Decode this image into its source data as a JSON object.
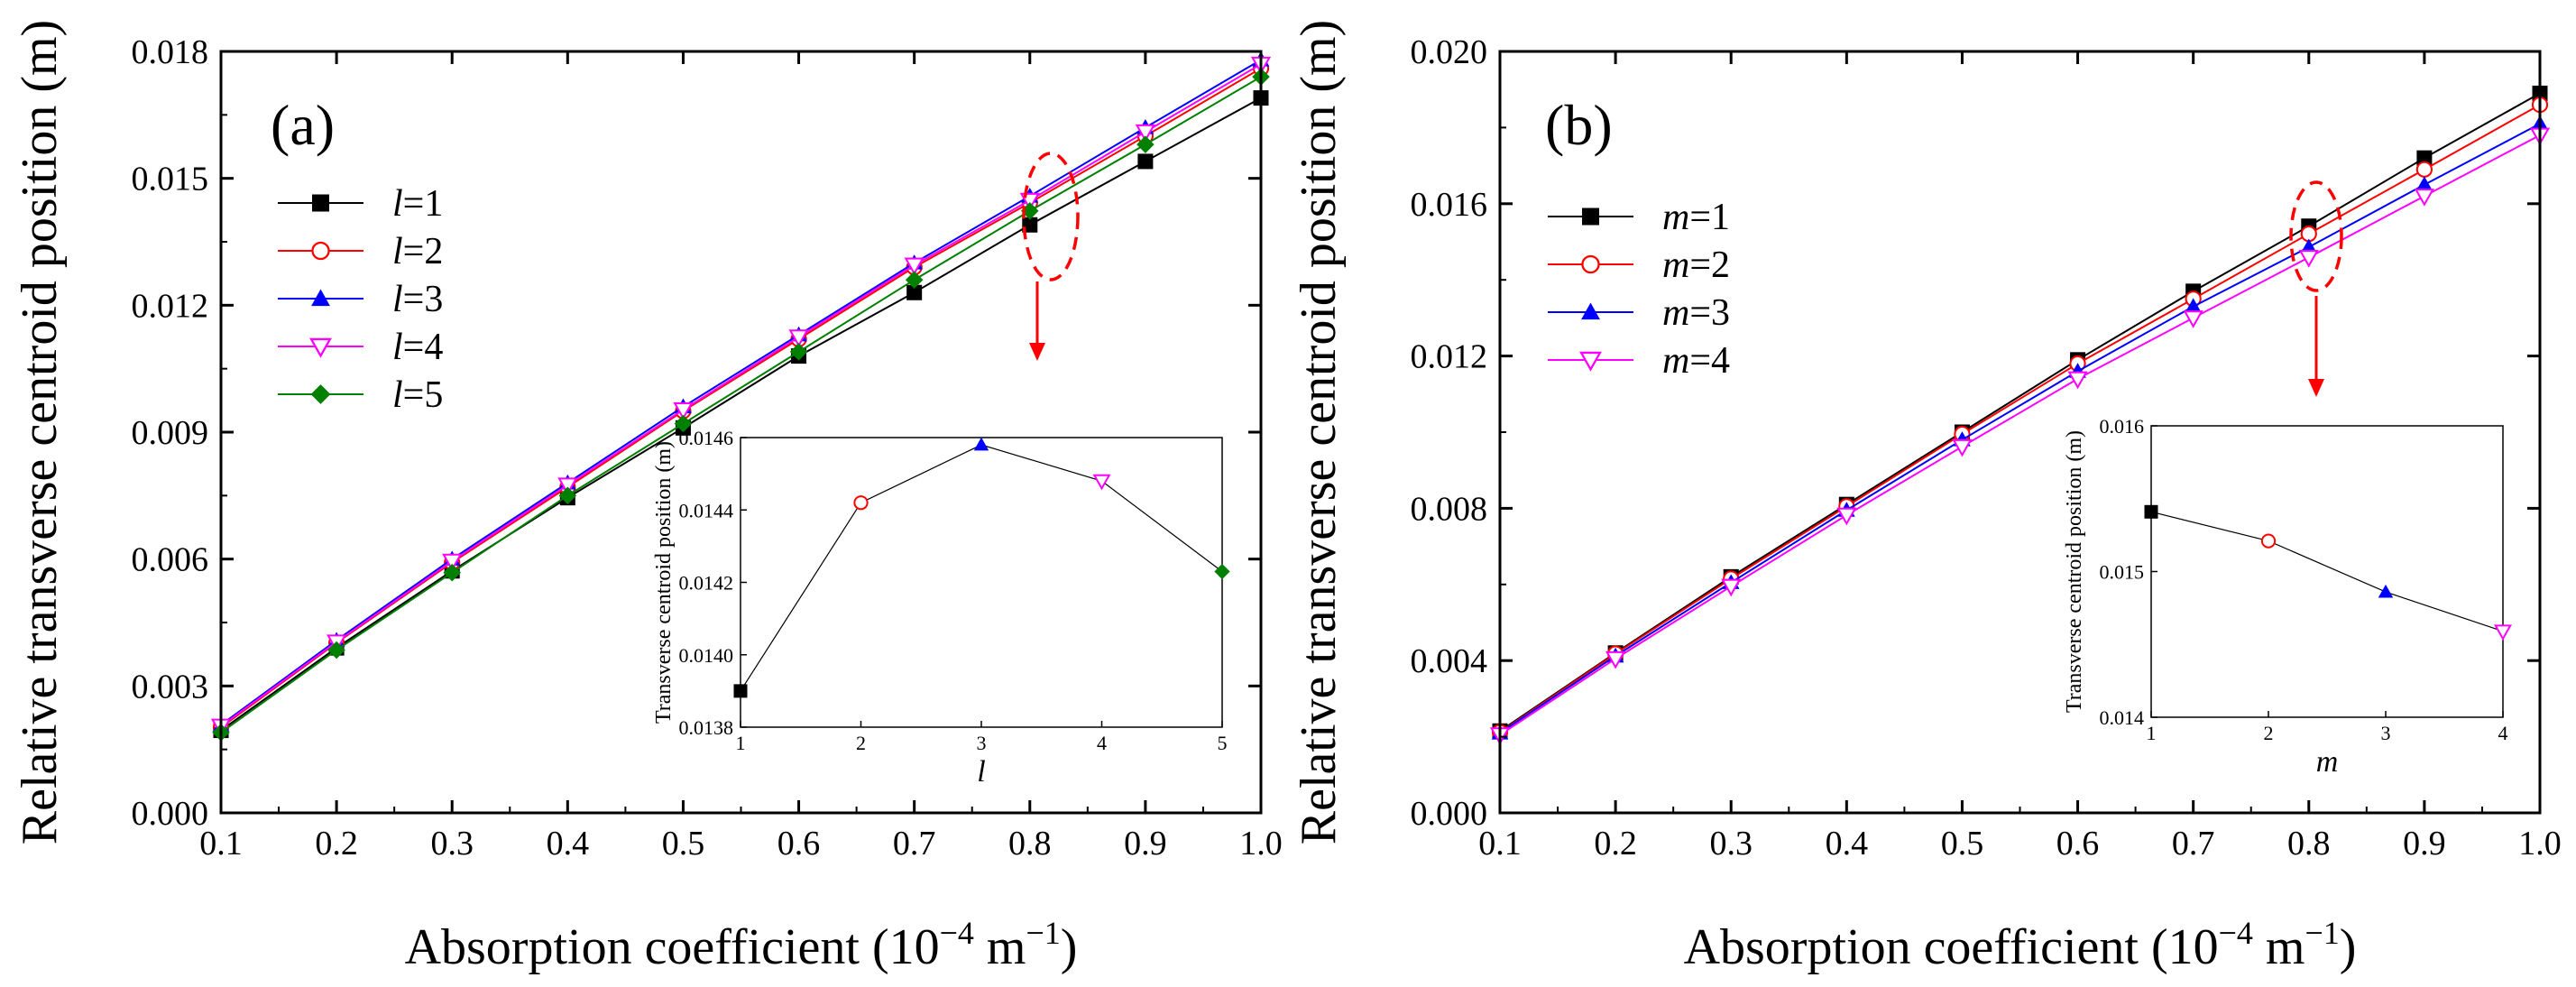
{
  "chart_data": [
    {
      "type": "line",
      "panel_label": "(a)",
      "xlabel": "Absorption coefficient (10^-4 m^-1)",
      "xlabel_base": "Absorption coefficient (10",
      "xlabel_exp1": "−4",
      "xlabel_unit": " m",
      "xlabel_exp2": "−1",
      "xlabel_close": ")",
      "ylabel": "Relative transverse centroid position (m)",
      "xlim": [
        0.1,
        1.0
      ],
      "ylim": [
        0.0,
        0.018
      ],
      "xticks": [
        "0.1",
        "0.2",
        "0.3",
        "0.4",
        "0.5",
        "0.6",
        "0.7",
        "0.8",
        "0.9",
        "1.0"
      ],
      "yticks": [
        "0.000",
        "0.003",
        "0.006",
        "0.009",
        "0.012",
        "0.015",
        "0.018"
      ],
      "x": [
        0.1,
        0.2,
        0.3,
        0.4,
        0.5,
        0.6,
        0.7,
        0.8,
        0.9,
        1.0
      ],
      "series": [
        {
          "name": "l=1",
          "var": "l",
          "eq": "=1",
          "color": "#000000",
          "marker": "square",
          "values": [
            0.00195,
            0.0039,
            0.00572,
            0.00745,
            0.0091,
            0.0108,
            0.0123,
            0.0139,
            0.0154,
            0.0169
          ]
        },
        {
          "name": "l=2",
          "var": "l",
          "eq": "=2",
          "color": "#ff0000",
          "marker": "circle-open",
          "values": [
            0.00202,
            0.00402,
            0.00592,
            0.0077,
            0.0095,
            0.0112,
            0.0129,
            0.01442,
            0.016,
            0.0176
          ]
        },
        {
          "name": "l=3",
          "var": "l",
          "eq": "=3",
          "color": "#0000ff",
          "marker": "triangle-up",
          "values": [
            0.00208,
            0.00408,
            0.006,
            0.0078,
            0.0096,
            0.0113,
            0.013,
            0.01458,
            0.0162,
            0.0178
          ]
        },
        {
          "name": "l=4",
          "var": "l",
          "eq": "=4",
          "color": "#ff00ff",
          "marker": "triangle-down-open",
          "values": [
            0.00205,
            0.00404,
            0.00595,
            0.00775,
            0.00953,
            0.01125,
            0.01295,
            0.01448,
            0.0161,
            0.0177
          ]
        },
        {
          "name": "l=5",
          "var": "l",
          "eq": "=5",
          "color": "#008000",
          "marker": "diamond",
          "values": [
            0.0019,
            0.00385,
            0.00568,
            0.0075,
            0.0092,
            0.0109,
            0.0126,
            0.01423,
            0.0158,
            0.0174
          ]
        }
      ],
      "inset": {
        "xlabel": "l",
        "ylabel": "Transverse centroid position (m)",
        "xlim": [
          1,
          5
        ],
        "ylim": [
          0.0138,
          0.0146
        ],
        "xticks": [
          "1",
          "2",
          "3",
          "4",
          "5"
        ],
        "yticks": [
          "0.0138",
          "0.0140",
          "0.0142",
          "0.0144",
          "0.0146"
        ],
        "x": [
          1,
          2,
          3,
          4,
          5
        ],
        "values": [
          0.0139,
          0.01442,
          0.01458,
          0.01448,
          0.01423
        ]
      }
    },
    {
      "type": "line",
      "panel_label": "(b)",
      "xlabel": "Absorption coefficient (10^-4 m^-1)",
      "xlabel_base": "Absorption coefficient (10",
      "xlabel_exp1": "−4",
      "xlabel_unit": " m",
      "xlabel_exp2": "−1",
      "xlabel_close": ")",
      "ylabel": "Relative transverse centroid position (m)",
      "xlim": [
        0.1,
        1.0
      ],
      "ylim": [
        0.0,
        0.02
      ],
      "xticks": [
        "0.1",
        "0.2",
        "0.3",
        "0.4",
        "0.5",
        "0.6",
        "0.7",
        "0.8",
        "0.9",
        "1.0"
      ],
      "yticks": [
        "0.000",
        "0.004",
        "0.008",
        "0.012",
        "0.016",
        "0.020"
      ],
      "x": [
        0.1,
        0.2,
        0.3,
        0.4,
        0.5,
        0.6,
        0.7,
        0.8,
        0.9,
        1.0
      ],
      "series": [
        {
          "name": "m=1",
          "var": "m",
          "eq": "=1",
          "color": "#000000",
          "marker": "square",
          "values": [
            0.00215,
            0.0042,
            0.0062,
            0.0081,
            0.01,
            0.0119,
            0.0137,
            0.01541,
            0.0172,
            0.0189
          ]
        },
        {
          "name": "m=2",
          "var": "m",
          "eq": "=2",
          "color": "#ff0000",
          "marker": "circle-open",
          "values": [
            0.00212,
            0.00418,
            0.00615,
            0.00805,
            0.00995,
            0.0118,
            0.0135,
            0.01521,
            0.0169,
            0.0186
          ]
        },
        {
          "name": "m=3",
          "var": "m",
          "eq": "=3",
          "color": "#0000ff",
          "marker": "triangle-up",
          "values": [
            0.0021,
            0.00412,
            0.00605,
            0.00795,
            0.0098,
            0.0116,
            0.0133,
            0.01486,
            0.0165,
            0.0181
          ]
        },
        {
          "name": "m=4",
          "var": "m",
          "eq": "=4",
          "color": "#ff00ff",
          "marker": "triangle-down-open",
          "values": [
            0.00205,
            0.00405,
            0.00595,
            0.00782,
            0.00962,
            0.0114,
            0.013,
            0.01459,
            0.0162,
            0.0178
          ]
        }
      ],
      "inset": {
        "xlabel": "m",
        "ylabel": "Transverse centroid position (m)",
        "xlim": [
          1,
          4
        ],
        "ylim": [
          0.014,
          0.016
        ],
        "xticks": [
          "1",
          "2",
          "3",
          "4"
        ],
        "yticks": [
          "0.014",
          "0.015",
          "0.016"
        ],
        "x": [
          1,
          2,
          3,
          4
        ],
        "values": [
          0.01541,
          0.01521,
          0.01486,
          0.01459
        ]
      }
    }
  ]
}
